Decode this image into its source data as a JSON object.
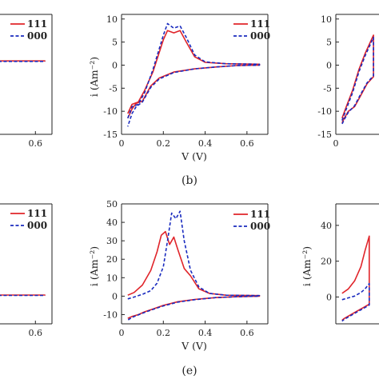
{
  "captions": [
    "(b)",
    "(e)"
  ],
  "colors": {
    "series_111": "#e0242a",
    "series_000": "#1a2bbf",
    "axis": "#222222"
  },
  "chart_data": [
    {
      "panel": "left-top",
      "type": "line",
      "xticks": [
        "0.6"
      ],
      "xtick_values": [
        0.6
      ],
      "yticks": [],
      "xlim": [
        0.0,
        0.7
      ],
      "ylim": [
        -15,
        10
      ],
      "xlabel": "",
      "ylabel": "",
      "legend": [
        "111",
        "000"
      ],
      "legend_position": "top-right",
      "series": [
        {
          "name": "111",
          "style": "solid",
          "x": [
            0.0,
            0.3,
            0.66
          ],
          "y": [
            0.3,
            0.3,
            0.3
          ]
        },
        {
          "name": "000",
          "style": "dashed",
          "x": [
            0.0,
            0.3,
            0.66
          ],
          "y": [
            0.2,
            0.2,
            0.2
          ]
        }
      ]
    },
    {
      "panel": "b",
      "type": "line",
      "xticks": [
        "0",
        "0.2",
        "0.4",
        "0.6"
      ],
      "xtick_values": [
        0,
        0.2,
        0.4,
        0.6
      ],
      "yticks": [
        "10",
        "5",
        "0",
        "-5",
        "-10",
        "-15"
      ],
      "ytick_values": [
        10,
        5,
        0,
        -5,
        -10,
        -15
      ],
      "xlim": [
        0,
        0.7
      ],
      "ylim": [
        -15,
        11
      ],
      "xlabel": "V (V)",
      "ylabel": "i (Am⁻²)",
      "legend": [
        "111",
        "000"
      ],
      "legend_position": "top-right",
      "series": [
        {
          "name": "111",
          "style": "solid",
          "x": [
            0.03,
            0.05,
            0.08,
            0.11,
            0.15,
            0.2,
            0.22,
            0.25,
            0.28,
            0.31,
            0.35,
            0.4,
            0.5,
            0.66,
            0.66,
            0.55,
            0.45,
            0.35,
            0.25,
            0.18,
            0.14,
            0.1,
            0.07,
            0.05,
            0.03
          ],
          "y": [
            -10.5,
            -8.5,
            -8.0,
            -5.5,
            -1.5,
            5.5,
            7.5,
            7.0,
            7.5,
            5.0,
            1.8,
            0.6,
            0.3,
            0.2,
            0.0,
            -0.1,
            -0.4,
            -0.8,
            -1.5,
            -2.8,
            -4.5,
            -7.8,
            -8.3,
            -9.5,
            -11.5
          ]
        },
        {
          "name": "000",
          "style": "dashed",
          "x": [
            0.03,
            0.05,
            0.08,
            0.11,
            0.15,
            0.2,
            0.22,
            0.25,
            0.28,
            0.31,
            0.35,
            0.4,
            0.5,
            0.66,
            0.66,
            0.55,
            0.45,
            0.35,
            0.25,
            0.18,
            0.14,
            0.1,
            0.07,
            0.05,
            0.03
          ],
          "y": [
            -11.5,
            -9.0,
            -8.5,
            -6.0,
            -1.0,
            6.5,
            9.0,
            8.0,
            8.5,
            6.0,
            2.2,
            0.7,
            0.3,
            0.2,
            0.0,
            -0.1,
            -0.4,
            -0.8,
            -1.6,
            -3.0,
            -4.8,
            -8.0,
            -9.0,
            -10.5,
            -13.3
          ]
        }
      ]
    },
    {
      "panel": "right-top",
      "type": "line",
      "xticks": [
        "0"
      ],
      "xtick_values": [
        0
      ],
      "yticks": [
        "10",
        "5",
        "0",
        "-5",
        "-10",
        "-15"
      ],
      "ytick_values": [
        10,
        5,
        0,
        -5,
        -10,
        -15
      ],
      "xlim": [
        0,
        0.7
      ],
      "ylim": [
        -15,
        11
      ],
      "xlabel": "",
      "ylabel": "",
      "series": [
        {
          "name": "111",
          "style": "solid",
          "x": [
            0.03,
            0.05,
            0.08,
            0.11,
            0.14,
            0.18,
            0.18,
            0.15,
            0.12,
            0.09,
            0.06,
            0.04,
            0.03
          ],
          "y": [
            -11.5,
            -9.0,
            -5.5,
            -1.0,
            2.5,
            6.5,
            -2.5,
            -4.0,
            -6.5,
            -9.0,
            -10.0,
            -11.5,
            -12.5
          ]
        },
        {
          "name": "000",
          "style": "dashed",
          "x": [
            0.03,
            0.05,
            0.08,
            0.11,
            0.14,
            0.18,
            0.18,
            0.15,
            0.12,
            0.09,
            0.06,
            0.04,
            0.03
          ],
          "y": [
            -12.0,
            -9.5,
            -6.0,
            -1.5,
            2.0,
            6.0,
            -2.3,
            -3.8,
            -6.2,
            -8.8,
            -10.2,
            -11.8,
            -12.8
          ]
        }
      ]
    },
    {
      "panel": "left-bottom",
      "type": "line",
      "xticks": [
        "0.6"
      ],
      "xtick_values": [
        0.6
      ],
      "yticks": [],
      "xlim": [
        0.0,
        0.7
      ],
      "ylim": [
        -15,
        50
      ],
      "xlabel": "",
      "ylabel": "",
      "legend": [
        "111",
        "000"
      ],
      "legend_position": "top-right",
      "series": [
        {
          "name": "111",
          "style": "solid",
          "x": [
            0.0,
            0.3,
            0.66
          ],
          "y": [
            0.6,
            0.6,
            0.6
          ]
        },
        {
          "name": "000",
          "style": "dashed",
          "x": [
            0.0,
            0.3,
            0.66
          ],
          "y": [
            0.4,
            0.4,
            0.4
          ]
        }
      ]
    },
    {
      "panel": "e",
      "type": "line",
      "xticks": [
        "0",
        "0.2",
        "0.4",
        "0.6"
      ],
      "xtick_values": [
        0,
        0.2,
        0.4,
        0.6
      ],
      "yticks": [
        "50",
        "40",
        "30",
        "20",
        "10",
        "0",
        "-10"
      ],
      "ytick_values": [
        50,
        40,
        30,
        20,
        10,
        0,
        -10
      ],
      "xlim": [
        0,
        0.7
      ],
      "ylim": [
        -15,
        50
      ],
      "xlabel": "V (V)",
      "ylabel": "i (Am⁻²)",
      "legend": [
        "111",
        "000"
      ],
      "legend_position": "top-right",
      "series": [
        {
          "name": "111",
          "style": "solid",
          "x": [
            0.03,
            0.06,
            0.1,
            0.14,
            0.17,
            0.19,
            0.21,
            0.23,
            0.25,
            0.27,
            0.3,
            0.33,
            0.37,
            0.42,
            0.5,
            0.66,
            0.66,
            0.55,
            0.45,
            0.35,
            0.27,
            0.2,
            0.15,
            0.11,
            0.08,
            0.05,
            0.03
          ],
          "y": [
            0.5,
            2.0,
            6.0,
            14.0,
            24.0,
            33.0,
            35.0,
            28.0,
            32.0,
            25.0,
            15.0,
            11.0,
            4.0,
            1.5,
            0.5,
            0.3,
            0.0,
            -0.3,
            -0.8,
            -1.8,
            -3.0,
            -5.0,
            -7.0,
            -8.5,
            -10.0,
            -11.0,
            -12.0
          ]
        },
        {
          "name": "000",
          "style": "dashed",
          "x": [
            0.03,
            0.06,
            0.1,
            0.14,
            0.17,
            0.2,
            0.22,
            0.24,
            0.26,
            0.28,
            0.3,
            0.33,
            0.37,
            0.42,
            0.5,
            0.66,
            0.66,
            0.55,
            0.45,
            0.35,
            0.27,
            0.2,
            0.15,
            0.11,
            0.08,
            0.05,
            0.03
          ],
          "y": [
            -1.5,
            -0.5,
            1.0,
            3.0,
            7.0,
            16.0,
            30.0,
            45.0,
            42.0,
            46.0,
            30.0,
            14.0,
            5.0,
            1.5,
            0.5,
            0.3,
            0.0,
            -0.3,
            -0.8,
            -1.9,
            -3.2,
            -5.3,
            -7.2,
            -8.8,
            -10.2,
            -11.5,
            -13.0
          ]
        }
      ]
    },
    {
      "panel": "right-bottom",
      "type": "line",
      "xticks": [],
      "xtick_values": [],
      "yticks": [
        "40",
        "20",
        "0"
      ],
      "ytick_values": [
        40,
        20,
        0
      ],
      "xlim": [
        0,
        0.7
      ],
      "ylim": [
        -15,
        52
      ],
      "xlabel": "",
      "ylabel": "i (Am⁻²)",
      "series": [
        {
          "name": "111",
          "style": "solid",
          "x": [
            0.03,
            0.06,
            0.09,
            0.12,
            0.14,
            0.16,
            0.16,
            0.13,
            0.1,
            0.07,
            0.04,
            0.03
          ],
          "y": [
            2.0,
            4.5,
            9.0,
            17.0,
            26.0,
            34.0,
            -4.0,
            -6.0,
            -8.0,
            -10.0,
            -12.0,
            -13.0
          ]
        },
        {
          "name": "000",
          "style": "dashed",
          "x": [
            0.03,
            0.06,
            0.09,
            0.12,
            0.14,
            0.16,
            0.16,
            0.13,
            0.1,
            0.07,
            0.04,
            0.03
          ],
          "y": [
            -1.5,
            -0.5,
            0.5,
            2.5,
            4.5,
            7.5,
            -4.5,
            -6.5,
            -8.5,
            -10.5,
            -12.5,
            -13.5
          ]
        }
      ]
    }
  ]
}
